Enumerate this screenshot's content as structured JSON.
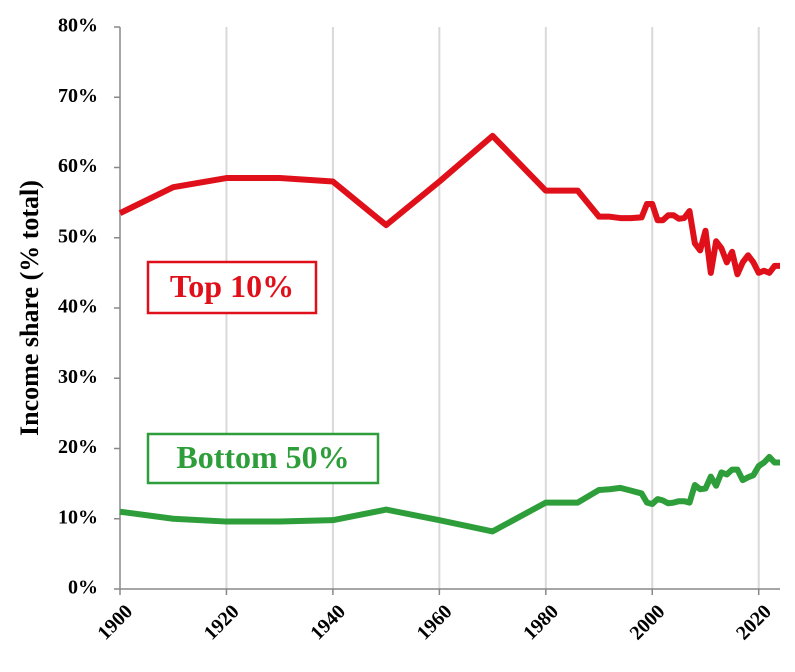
{
  "chart_data": {
    "type": "line",
    "y_label": "Income share (% total)",
    "x": [
      1900,
      1910,
      1920,
      1930,
      1940,
      1950,
      1960,
      1970,
      1980,
      1986,
      1990,
      1992,
      1994,
      1996,
      1998,
      1999,
      2000,
      2001,
      2002,
      2003,
      2004,
      2005,
      2006,
      2007,
      2008,
      2009,
      2010,
      2011,
      2012,
      2013,
      2014,
      2015,
      2016,
      2017,
      2018,
      2019,
      2020,
      2021,
      2022,
      2023,
      2024
    ],
    "series": [
      {
        "name": "Top 10%",
        "color": "#e0101a",
        "values": [
          53.5,
          57.2,
          58.5,
          58.5,
          58,
          51.8,
          58,
          64.5,
          56.7,
          56.7,
          53,
          53,
          52.8,
          52.8,
          52.9,
          54.8,
          54.8,
          52.5,
          52.5,
          53.2,
          53.2,
          52.7,
          52.8,
          53.8,
          49.2,
          48.2,
          51,
          45,
          49.5,
          48.5,
          46.5,
          48,
          44.8,
          46.5,
          47.5,
          46.5,
          45,
          45.3,
          45,
          46,
          46
        ]
      },
      {
        "name": "Bottom 50%",
        "color": "#2e9e3a",
        "values": [
          11,
          10,
          9.6,
          9.6,
          9.8,
          11.3,
          9.8,
          8.2,
          12.3,
          12.3,
          14.1,
          14.2,
          14.4,
          14,
          13.6,
          12.3,
          12.1,
          12.8,
          12.6,
          12.2,
          12.3,
          12.5,
          12.5,
          12.3,
          14.8,
          14.2,
          14.3,
          16,
          14.7,
          16.6,
          16.3,
          17,
          17,
          15.5,
          15.9,
          16.2,
          17.5,
          18,
          18.8,
          18,
          18
        ]
      }
    ],
    "xlim": [
      1900,
      2024
    ],
    "xticks": [
      1900,
      1920,
      1940,
      1960,
      1980,
      2000,
      2020
    ],
    "ylim": [
      0,
      80
    ],
    "yticks": [
      {
        "value": 0,
        "label": "0%"
      },
      {
        "value": 10,
        "label": "10%"
      },
      {
        "value": 20,
        "label": "20%"
      },
      {
        "value": 30,
        "label": "30%"
      },
      {
        "value": 40,
        "label": "40%"
      },
      {
        "value": 50,
        "label": "50%"
      },
      {
        "value": 60,
        "label": "60%"
      },
      {
        "value": 70,
        "label": "70%"
      },
      {
        "value": 80,
        "label": "80%"
      }
    ],
    "grid": "x"
  }
}
